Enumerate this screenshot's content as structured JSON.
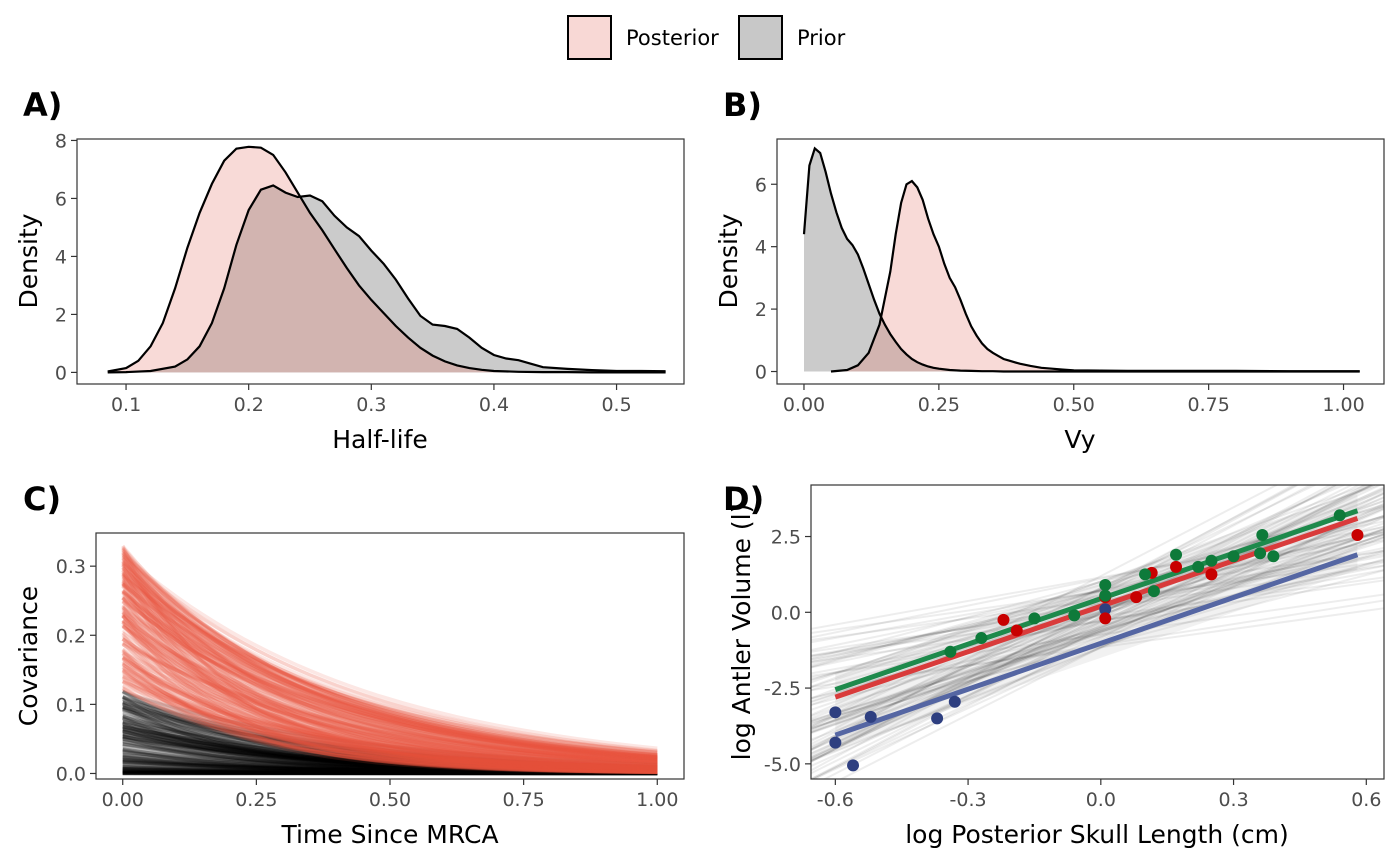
{
  "legend": {
    "items": [
      {
        "label": "Posterior",
        "color": "#F8D8D5"
      },
      {
        "label": "Prior",
        "color": "#C8C8C8"
      }
    ]
  },
  "colors": {
    "posterior_fill": "#F8D8D5",
    "prior_fill": "#C8C8C8",
    "overlap_fill": "#D2B4B0",
    "posterior_lines": "#E8553F",
    "prior_lines": "#000000",
    "green": "#1E8A4C",
    "red": "#D93B3B",
    "blue": "#5566A3",
    "green_point": "#0E7A3A",
    "red_point": "#C80000",
    "blue_point": "#2E3F80"
  },
  "chart_data": [
    {
      "tag": "A)",
      "type": "area",
      "xlabel": "Half-life",
      "ylabel": "Density",
      "xlim": [
        0.06,
        0.555
      ],
      "ylim": [
        -0.4,
        8.05
      ],
      "xticks": [
        "0.1",
        "0.2",
        "0.3",
        "0.4",
        "0.5"
      ],
      "yticks": [
        "0",
        "2",
        "4",
        "6",
        "8"
      ],
      "series": [
        {
          "name": "Posterior",
          "x": [
            0.085,
            0.1,
            0.11,
            0.12,
            0.13,
            0.14,
            0.15,
            0.16,
            0.17,
            0.18,
            0.19,
            0.2,
            0.21,
            0.22,
            0.23,
            0.24,
            0.25,
            0.26,
            0.27,
            0.28,
            0.29,
            0.3,
            0.31,
            0.32,
            0.33,
            0.34,
            0.35,
            0.36,
            0.37,
            0.38,
            0.39,
            0.4,
            0.42,
            0.44,
            0.46,
            0.48,
            0.5,
            0.52,
            0.54
          ],
          "y": [
            0.03,
            0.15,
            0.4,
            0.9,
            1.7,
            2.9,
            4.3,
            5.5,
            6.5,
            7.3,
            7.72,
            7.78,
            7.75,
            7.5,
            6.9,
            6.2,
            5.5,
            4.9,
            4.25,
            3.6,
            3.0,
            2.5,
            2.05,
            1.6,
            1.2,
            0.85,
            0.58,
            0.38,
            0.24,
            0.15,
            0.09,
            0.05,
            0.02,
            0.01,
            0.01,
            0.0,
            0.0,
            0.0,
            0.0
          ]
        },
        {
          "name": "Prior",
          "x": [
            0.085,
            0.1,
            0.12,
            0.14,
            0.15,
            0.16,
            0.17,
            0.18,
            0.19,
            0.2,
            0.21,
            0.22,
            0.23,
            0.24,
            0.25,
            0.26,
            0.27,
            0.28,
            0.29,
            0.3,
            0.31,
            0.32,
            0.33,
            0.34,
            0.35,
            0.36,
            0.37,
            0.38,
            0.39,
            0.4,
            0.41,
            0.42,
            0.43,
            0.44,
            0.46,
            0.48,
            0.5,
            0.52,
            0.54
          ],
          "y": [
            0.0,
            0.01,
            0.05,
            0.2,
            0.45,
            0.9,
            1.7,
            2.9,
            4.4,
            5.6,
            6.3,
            6.45,
            6.2,
            6.05,
            6.1,
            5.9,
            5.4,
            5.0,
            4.7,
            4.2,
            3.75,
            3.2,
            2.55,
            1.95,
            1.65,
            1.6,
            1.5,
            1.2,
            0.85,
            0.6,
            0.48,
            0.42,
            0.3,
            0.18,
            0.12,
            0.08,
            0.05,
            0.05,
            0.04
          ]
        }
      ]
    },
    {
      "tag": "B)",
      "type": "area",
      "xlabel": "Vy",
      "ylabel": "Density",
      "xlim": [
        -0.05,
        1.075
      ],
      "ylim": [
        -0.4,
        7.45
      ],
      "xticks": [
        "0.00",
        "0.25",
        "0.50",
        "0.75",
        "1.00"
      ],
      "yticks": [
        "0",
        "2",
        "4",
        "6"
      ],
      "series": [
        {
          "name": "Prior",
          "x": [
            0.0,
            0.01,
            0.02,
            0.03,
            0.04,
            0.05,
            0.06,
            0.07,
            0.08,
            0.09,
            0.1,
            0.11,
            0.12,
            0.13,
            0.14,
            0.15,
            0.16,
            0.17,
            0.18,
            0.19,
            0.2,
            0.21,
            0.22,
            0.23,
            0.24,
            0.25,
            0.27,
            0.29,
            0.31,
            0.33,
            0.35,
            0.37,
            0.4,
            0.45,
            0.5,
            0.6,
            0.7,
            0.8,
            0.9,
            1.0,
            1.03
          ],
          "y": [
            4.4,
            6.6,
            7.15,
            7.0,
            6.4,
            5.7,
            5.1,
            4.6,
            4.25,
            4.05,
            3.75,
            3.3,
            2.8,
            2.3,
            1.85,
            1.5,
            1.2,
            0.95,
            0.72,
            0.55,
            0.4,
            0.3,
            0.22,
            0.16,
            0.12,
            0.09,
            0.05,
            0.03,
            0.02,
            0.01,
            0.01,
            0.0,
            0.0,
            0.0,
            0.0,
            0.0,
            0.0,
            0.0,
            0.0,
            0.0,
            0.0
          ]
        },
        {
          "name": "Posterior",
          "x": [
            0.05,
            0.08,
            0.1,
            0.12,
            0.14,
            0.16,
            0.17,
            0.18,
            0.19,
            0.2,
            0.21,
            0.22,
            0.23,
            0.24,
            0.25,
            0.26,
            0.27,
            0.28,
            0.29,
            0.3,
            0.31,
            0.32,
            0.33,
            0.34,
            0.35,
            0.36,
            0.37,
            0.38,
            0.39,
            0.4,
            0.42,
            0.44,
            0.46,
            0.48,
            0.5,
            0.55,
            0.6,
            0.7,
            0.8,
            0.9,
            1.0,
            1.03
          ],
          "y": [
            0.0,
            0.05,
            0.2,
            0.6,
            1.5,
            3.2,
            4.4,
            5.4,
            6.0,
            6.1,
            5.9,
            5.5,
            4.9,
            4.4,
            4.0,
            3.45,
            3.0,
            2.7,
            2.3,
            1.85,
            1.45,
            1.15,
            0.9,
            0.72,
            0.6,
            0.5,
            0.4,
            0.35,
            0.3,
            0.25,
            0.18,
            0.12,
            0.09,
            0.06,
            0.04,
            0.03,
            0.02,
            0.02,
            0.02,
            0.01,
            0.01,
            0.01
          ]
        }
      ]
    },
    {
      "tag": "C)",
      "type": "line",
      "xlabel": "Time Since MRCA",
      "ylabel": "Covariance",
      "xlim": [
        -0.05,
        1.05
      ],
      "ylim": [
        -0.008,
        0.348
      ],
      "xticks": [
        "0.00",
        "0.25",
        "0.50",
        "0.75",
        "1.00"
      ],
      "yticks": [
        "0.0",
        "0.1",
        "0.2",
        "0.3"
      ],
      "series": [
        {
          "name": "Posterior",
          "vy_range": [
            0.12,
            0.33
          ],
          "halflife_range": [
            0.14,
            0.32
          ],
          "n_draws": 220
        },
        {
          "name": "Prior",
          "vy_range": [
            0.0,
            0.12
          ],
          "halflife_range": [
            0.14,
            0.32
          ],
          "n_draws": 220
        }
      ]
    },
    {
      "tag": "D)",
      "type": "scatter",
      "xlabel": "log Posterior Skull Length (cm)",
      "ylabel": "log Antler Volume (l)",
      "xlim": [
        -0.655,
        0.64
      ],
      "ylim": [
        -5.5,
        4.2
      ],
      "xticks": [
        "-0.6",
        "-0.3",
        "0.0",
        "0.3",
        "0.6"
      ],
      "yticks": [
        "2.5",
        "0.0",
        "-2.5",
        "-5.0"
      ],
      "regression_lines": [
        {
          "group": "green",
          "x": [
            -0.6,
            0.58
          ],
          "y": [
            -2.55,
            3.35
          ]
        },
        {
          "group": "red",
          "x": [
            -0.6,
            0.58
          ],
          "y": [
            -2.8,
            3.1
          ]
        },
        {
          "group": "blue",
          "x": [
            -0.6,
            0.58
          ],
          "y": [
            -4.05,
            1.9
          ]
        }
      ],
      "points": {
        "green": {
          "x": [
            -0.34,
            -0.27,
            -0.15,
            -0.06,
            0.01,
            0.01,
            0.1,
            0.12,
            0.17,
            0.22,
            0.25,
            0.3,
            0.36,
            0.365,
            0.39,
            0.54
          ],
          "y": [
            -1.3,
            -0.85,
            -0.2,
            -0.1,
            0.55,
            0.9,
            1.25,
            0.7,
            1.9,
            1.5,
            1.7,
            1.85,
            1.95,
            2.55,
            1.85,
            3.2
          ]
        },
        "red": {
          "x": [
            -0.22,
            -0.19,
            0.01,
            0.01,
            0.08,
            0.115,
            0.17,
            0.25,
            0.58
          ],
          "y": [
            -0.25,
            -0.6,
            0.5,
            -0.2,
            0.5,
            1.3,
            1.5,
            1.25,
            2.55
          ]
        },
        "blue": {
          "x": [
            -0.6,
            -0.6,
            -0.56,
            -0.52,
            -0.37,
            -0.33,
            0.01
          ],
          "y": [
            -3.3,
            -4.3,
            -5.05,
            -3.45,
            -3.5,
            -2.95,
            0.1
          ]
        }
      },
      "n_posterior_lines": 90
    }
  ]
}
